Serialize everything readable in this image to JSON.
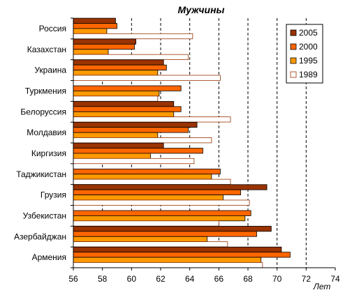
{
  "chart_data": {
    "type": "bar",
    "orientation": "horizontal",
    "title": "Мужчины",
    "xlabel": "Лет",
    "xlim": [
      56,
      74
    ],
    "xticks": [
      56,
      58,
      60,
      62,
      64,
      66,
      68,
      70,
      72,
      74
    ],
    "grid": "vertical dashed",
    "legend_position": "top-right",
    "categories": [
      "Россия",
      "Казахстан",
      "Украина",
      "Туркмения",
      "Белоруссия",
      "Молдавия",
      "Киргизия",
      "Таджикистан",
      "Грузия",
      "Узбекистан",
      "Азербайджан",
      "Армения"
    ],
    "series": [
      {
        "name": "2005",
        "color": "#993300",
        "values": [
          58.9,
          60.3,
          62.2,
          null,
          62.9,
          64.5,
          62.2,
          null,
          69.3,
          null,
          69.6,
          70.3
        ]
      },
      {
        "name": "2000",
        "color": "#ff6600",
        "values": [
          59.0,
          60.2,
          62.4,
          63.4,
          63.4,
          63.9,
          64.9,
          66.1,
          67.5,
          68.2,
          68.6,
          70.9
        ]
      },
      {
        "name": "1995",
        "color": "#ff9900",
        "values": [
          58.3,
          58.4,
          61.8,
          61.9,
          62.9,
          61.8,
          61.3,
          65.5,
          66.3,
          67.8,
          65.2,
          68.9
        ]
      },
      {
        "name": "1989",
        "color": "#ffffff",
        "stroke": "#993300",
        "values": [
          64.2,
          63.9,
          66.1,
          61.8,
          66.8,
          65.5,
          64.3,
          66.8,
          68.1,
          66.0,
          66.6,
          69.0
        ]
      }
    ]
  }
}
